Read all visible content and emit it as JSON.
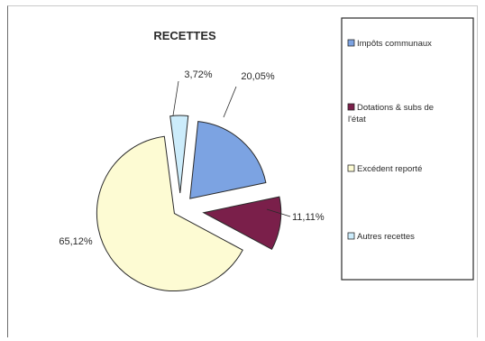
{
  "chart_data": {
    "type": "pie",
    "title": "RECETTES",
    "series": [
      {
        "name": "",
        "values": [
          20.05,
          11.11,
          65.12,
          3.72
        ]
      }
    ],
    "categories": [
      "Impôts communaux",
      "Dotations & subs de l'état",
      "Excédent reporté",
      "Autres recettes"
    ],
    "value_labels": [
      "20,05%",
      "11,11%",
      "65,12%",
      "3,72%"
    ],
    "legend_lines": [
      [
        "Impôts communaux"
      ],
      [
        "Dotations & subs de",
        "l'état"
      ],
      [
        "Excédent reporté"
      ],
      [
        "Autres recettes"
      ]
    ],
    "colors": [
      "#7ca3e2",
      "#7a1f4a",
      "#fdfbd3",
      "#ccecfb"
    ],
    "exploded": true,
    "legend_position": "right"
  }
}
